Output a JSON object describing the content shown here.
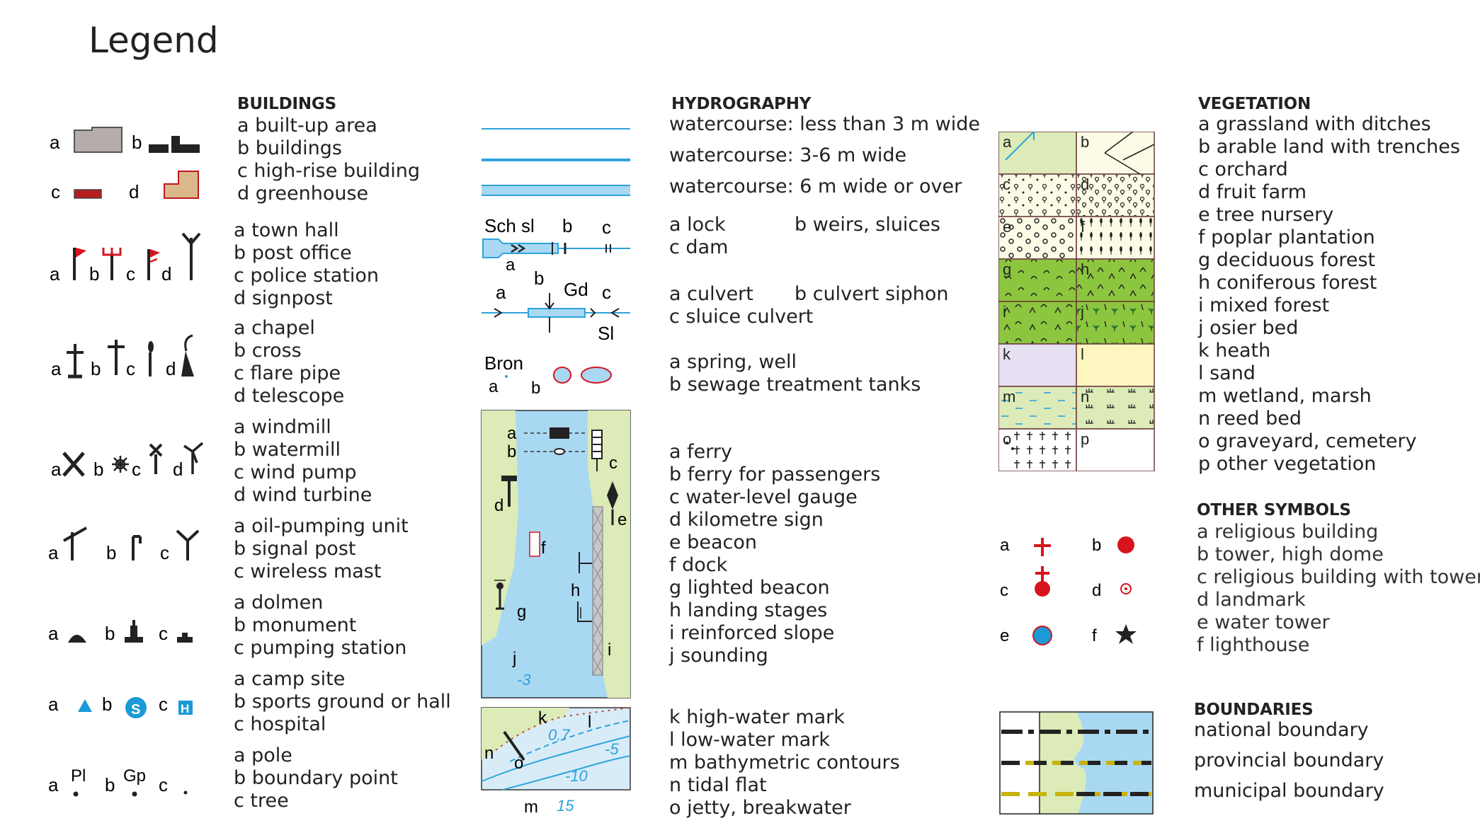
{
  "title": "Legend",
  "buildings": {
    "heading": "BUILDINGS",
    "g1": [
      "a built-up area",
      "b buildings",
      "c high-rise building",
      "d greenhouse"
    ],
    "g1_letters": [
      "a",
      "b",
      "c",
      "d"
    ],
    "g2": [
      "a town hall",
      "b post office",
      "c police station",
      "d signpost"
    ],
    "g2_letters": [
      "a",
      "b",
      "c",
      "d"
    ],
    "g3": [
      "a chapel",
      "b cross",
      "c flare pipe",
      "d telescope"
    ],
    "g3_letters": [
      "a",
      "b",
      "c",
      "d"
    ],
    "g4": [
      "a windmill",
      "b watermill",
      "c wind pump",
      "d wind turbine"
    ],
    "g4_letters": [
      "a",
      "b",
      "c",
      "d"
    ],
    "g5": [
      "a oil-pumping unit",
      "b signal post",
      "c wireless mast"
    ],
    "g5_letters": [
      "a",
      "b",
      "c"
    ],
    "g6": [
      "a dolmen",
      "b monument",
      "c pumping station"
    ],
    "g6_letters": [
      "a",
      "b",
      "c"
    ],
    "g7": [
      "a camp site",
      "b sports ground or hall",
      "c hospital"
    ],
    "g7_letters": [
      "a",
      "b",
      "c"
    ],
    "g8": [
      "a pole",
      "b boundary point",
      "c tree"
    ],
    "g8_letters": [
      "a",
      "b",
      "c"
    ],
    "g8_symbol_text": [
      "Pl",
      "Gp"
    ]
  },
  "hydrography": {
    "heading": "HYDROGRAPHY",
    "watercourses": [
      "watercourse: less than 3 m wide",
      "watercourse: 3-6 m wide",
      "watercourse: 6 m wide or over"
    ],
    "lock_a": "a lock",
    "lock_b": "b weirs, sluices",
    "lock_c": "c dam",
    "lock_symbol": [
      "Sch sl",
      "b",
      "c",
      "a"
    ],
    "culvert_a": "a culvert",
    "culvert_b": "b culvert siphon",
    "culvert_c": "c sluice culvert",
    "culvert_symbol": [
      "a",
      "b",
      "Gd",
      "c",
      "Sl"
    ],
    "spring": [
      "a spring, well",
      "b sewage treatment tanks"
    ],
    "spring_symbol": [
      "Bron",
      "a",
      "b"
    ],
    "ferry": [
      "a ferry",
      "b ferry for passengers",
      "c water-level gauge",
      "d kilometre sign",
      "e beacon",
      "f dock",
      "g lighted beacon",
      "h landing stages",
      "i reinforced slope",
      "j sounding"
    ],
    "ferry_symbol": [
      "a",
      "b",
      "c",
      "d",
      "e",
      "f",
      "g",
      "h",
      "i",
      "j",
      "-3"
    ],
    "tidal": [
      "k high-water mark",
      "l low-water mark",
      "m bathymetric contours",
      "n tidal flat",
      "o jetty, breakwater"
    ],
    "tidal_symbol": [
      "k",
      "l",
      "n",
      "o",
      "m",
      "0.7",
      "-5",
      "-10",
      "15"
    ]
  },
  "vegetation": {
    "heading": "VEGETATION",
    "items": [
      "a grassland with ditches",
      "b arable land with trenches",
      "c orchard",
      "d fruit farm",
      "e tree nursery",
      "f poplar plantation",
      "g deciduous forest",
      "h coniferous forest",
      "i mixed forest",
      "j osier bed",
      "k heath",
      "l sand",
      "m wetland, marsh",
      "n reed bed",
      "o graveyard, cemetery",
      "p other vegetation"
    ],
    "cell_letters": [
      "a",
      "b",
      "c",
      "d",
      "e",
      "f",
      "g",
      "h",
      "i",
      "j",
      "k",
      "l",
      "m",
      "n",
      "o",
      "p"
    ]
  },
  "other_symbols": {
    "heading": "OTHER SYMBOLS",
    "items": [
      "a religious building",
      "b tower, high dome",
      "c religious building with tower",
      "d landmark",
      "e water tower",
      "f lighthouse"
    ],
    "letters": [
      "a",
      "b",
      "c",
      "d",
      "e",
      "f"
    ]
  },
  "boundaries": {
    "heading": "BOUNDARIES",
    "items": [
      "national boundary",
      "provincial boundary",
      "municipal boundary"
    ]
  },
  "colors": {
    "water": "#a9d8f2",
    "water_line": "#2ea3dc",
    "grass": "#dcebb8",
    "forest": "#8cc63f",
    "red": "#d7141e",
    "blue_symbol": "#1a9ad6",
    "text": "#222222"
  }
}
